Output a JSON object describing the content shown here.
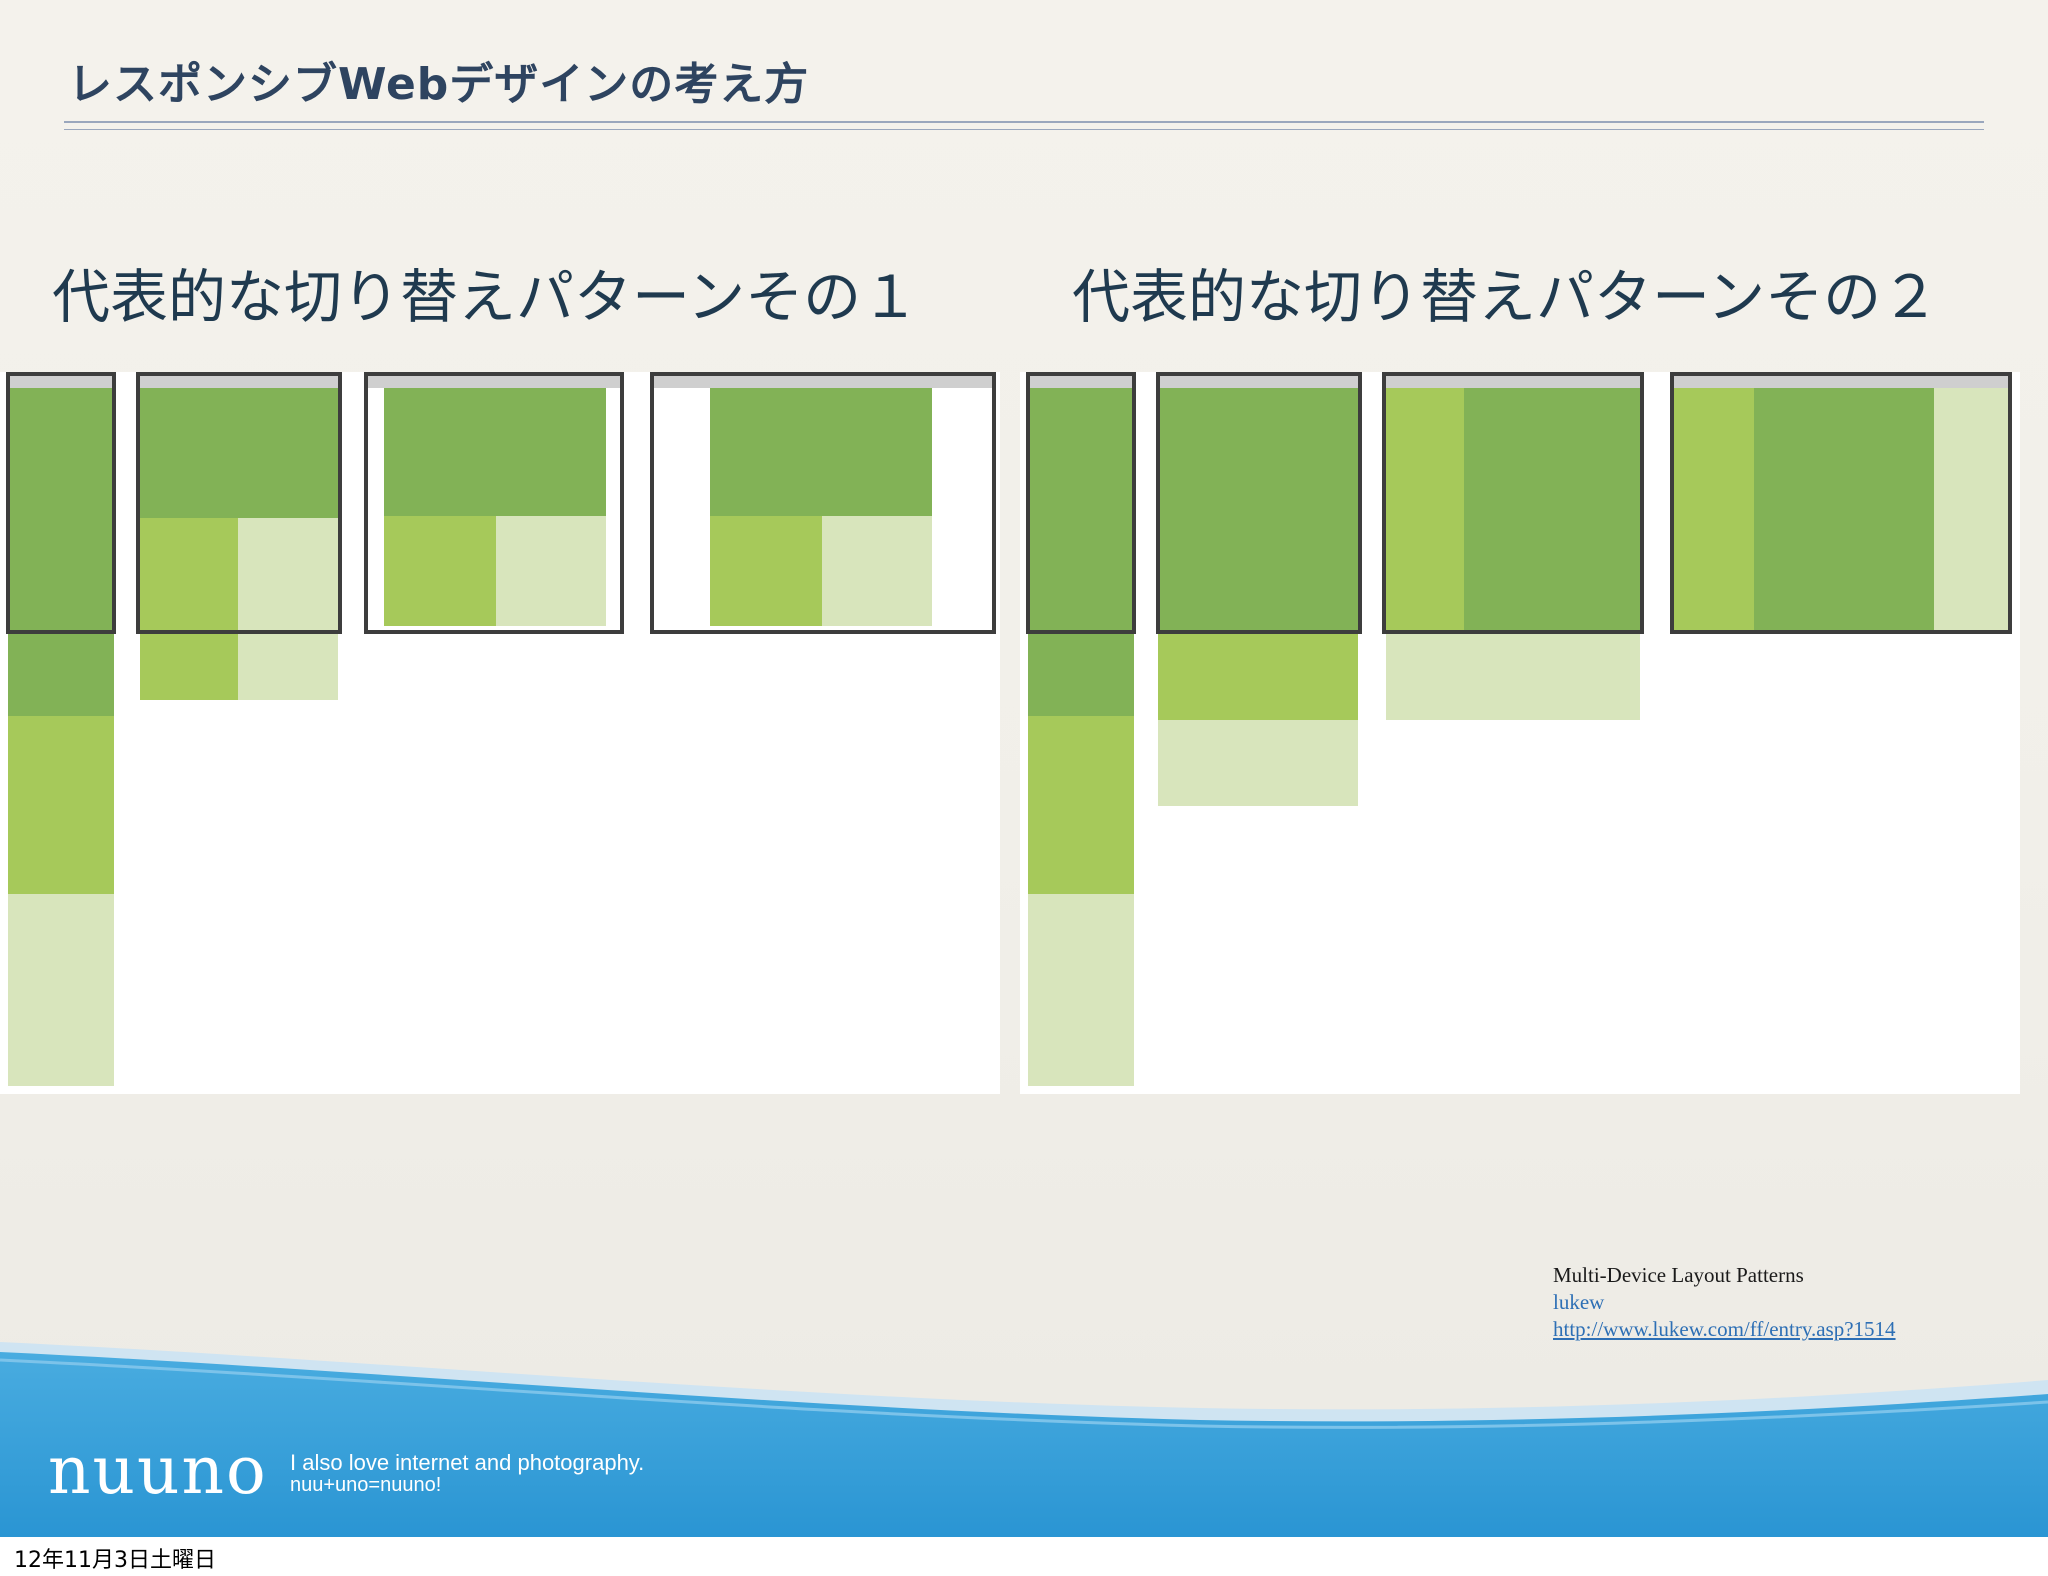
{
  "slide": {
    "title": "レスポンシブWebデザインの考え方",
    "pattern1_heading": "代表的な切り替えパターンその１",
    "pattern2_heading": "代表的な切り替えパターンその２"
  },
  "credit": {
    "title": "Multi-Device Layout Patterns",
    "author": "lukew",
    "url": "http://www.lukew.com/ff/entry.asp?1514"
  },
  "footer": {
    "brand": "nuuno",
    "tagline1": "I also love internet and photography.",
    "tagline2": "nuu+uno=nuuno!"
  },
  "date_stamp": "12年11月3日土曜日",
  "colors": {
    "primary_green": "#82b256",
    "secondary_green": "#a6c95a",
    "tertiary_green": "#d8e5bc",
    "footer_blue": "#2f9ad6",
    "title_navy": "#2e4460"
  }
}
